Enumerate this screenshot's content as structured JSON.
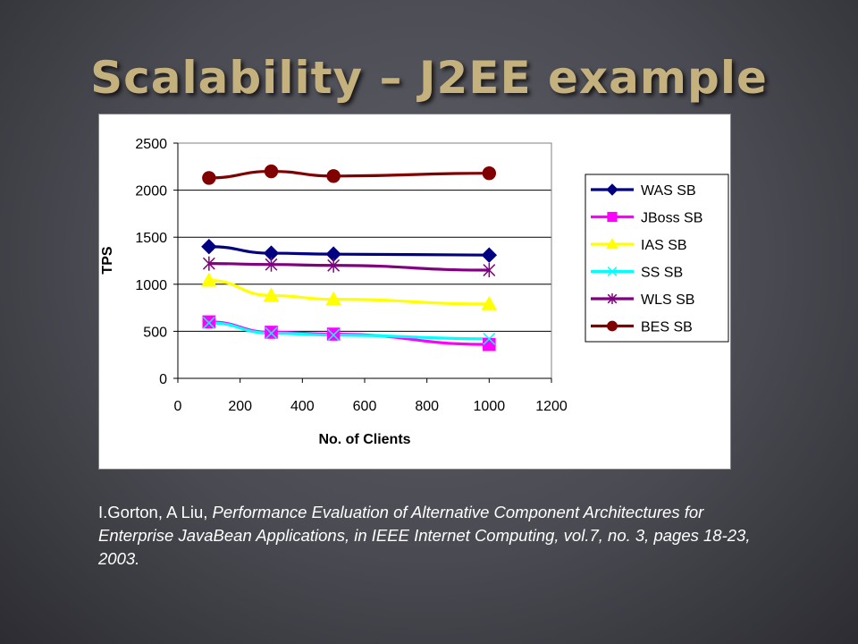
{
  "slide": {
    "title": "Scalability – J2EE example",
    "citation": {
      "authors": "I.Gorton, A Liu, ",
      "work": "Performance Evaluation of Alternative Component Architectures for Enterprise JavaBean Applications, in IEEE Internet Computing, vol.7, no. 3, pages 18-23, 2003."
    }
  },
  "chart_data": {
    "type": "line",
    "title": "",
    "xlabel": "No. of Clients",
    "ylabel": "TPS",
    "xlim": [
      0,
      1200
    ],
    "ylim": [
      0,
      2500
    ],
    "xticks": [
      0,
      200,
      400,
      600,
      800,
      1000,
      1200
    ],
    "yticks": [
      0,
      500,
      1000,
      1500,
      2000,
      2500
    ],
    "grid": "horizontal",
    "legend_position": "right",
    "x": [
      100,
      300,
      500,
      1000
    ],
    "series": [
      {
        "name": "WAS SB",
        "color": "#000080",
        "marker": "diamond",
        "values": [
          1400,
          1330,
          1320,
          1310
        ]
      },
      {
        "name": "JBoss SB",
        "color": "#ff00ff",
        "marker": "square",
        "values": [
          600,
          490,
          470,
          360
        ]
      },
      {
        "name": "IAS SB",
        "color": "#ffff00",
        "marker": "triangle",
        "values": [
          1040,
          880,
          840,
          790
        ]
      },
      {
        "name": "SS SB",
        "color": "#00ffff",
        "marker": "x",
        "values": [
          590,
          480,
          460,
          420
        ]
      },
      {
        "name": "WLS SB",
        "color": "#800080",
        "marker": "star",
        "values": [
          1220,
          1210,
          1200,
          1150
        ]
      },
      {
        "name": "BES SB",
        "color": "#800000",
        "marker": "circle",
        "values": [
          2130,
          2200,
          2150,
          2180
        ]
      }
    ]
  }
}
